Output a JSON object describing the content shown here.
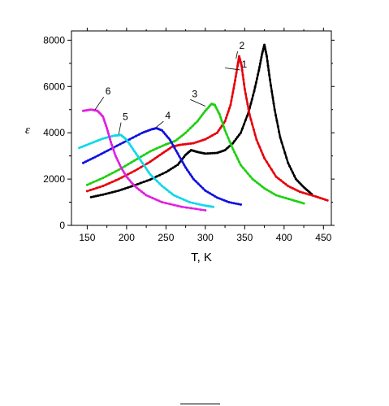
{
  "chart_data": {
    "type": "line",
    "xlabel": "T, K",
    "ylabel": "ε",
    "xlim": [
      130,
      460
    ],
    "ylim": [
      0,
      8400
    ],
    "x_ticks": [
      150,
      200,
      250,
      300,
      350,
      400,
      450
    ],
    "y_ticks": [
      0,
      2000,
      4000,
      6000,
      8000
    ],
    "grid": false,
    "legend": "none (curves numbered directly)",
    "series": [
      {
        "name": "1",
        "color": "#000000",
        "points": [
          [
            155,
            1220
          ],
          [
            170,
            1330
          ],
          [
            190,
            1500
          ],
          [
            210,
            1730
          ],
          [
            230,
            1980
          ],
          [
            250,
            2300
          ],
          [
            265,
            2620
          ],
          [
            275,
            3050
          ],
          [
            282,
            3250
          ],
          [
            290,
            3170
          ],
          [
            300,
            3100
          ],
          [
            315,
            3130
          ],
          [
            325,
            3250
          ],
          [
            335,
            3550
          ],
          [
            345,
            4000
          ],
          [
            355,
            4900
          ],
          [
            362,
            5800
          ],
          [
            368,
            6700
          ],
          [
            372,
            7400
          ],
          [
            375,
            7800
          ],
          [
            378,
            7300
          ],
          [
            382,
            6300
          ],
          [
            388,
            5000
          ],
          [
            395,
            3800
          ],
          [
            405,
            2700
          ],
          [
            415,
            2000
          ],
          [
            425,
            1650
          ],
          [
            435,
            1350
          ]
        ],
        "label_pos": [
          346,
          6820
        ],
        "label_anchor": [
          325,
          6800
        ]
      },
      {
        "name": "2",
        "color": "#e8000b",
        "points": [
          [
            150,
            1480
          ],
          [
            170,
            1700
          ],
          [
            190,
            2000
          ],
          [
            210,
            2350
          ],
          [
            230,
            2750
          ],
          [
            245,
            3100
          ],
          [
            258,
            3400
          ],
          [
            268,
            3480
          ],
          [
            285,
            3550
          ],
          [
            300,
            3720
          ],
          [
            315,
            4000
          ],
          [
            325,
            4500
          ],
          [
            332,
            5200
          ],
          [
            337,
            6100
          ],
          [
            341,
            6900
          ],
          [
            343,
            7300
          ],
          [
            346,
            6900
          ],
          [
            350,
            5900
          ],
          [
            356,
            4800
          ],
          [
            365,
            3700
          ],
          [
            375,
            2900
          ],
          [
            390,
            2100
          ],
          [
            405,
            1700
          ],
          [
            420,
            1450
          ],
          [
            440,
            1250
          ],
          [
            455,
            1080
          ]
        ],
        "label_pos": [
          343,
          7620
        ],
        "label_anchor": [
          339,
          7200
        ]
      },
      {
        "name": "3",
        "color": "#1ed010",
        "points": [
          [
            150,
            1750
          ],
          [
            170,
            2050
          ],
          [
            190,
            2400
          ],
          [
            210,
            2800
          ],
          [
            230,
            3200
          ],
          [
            250,
            3500
          ],
          [
            262,
            3650
          ],
          [
            275,
            4000
          ],
          [
            290,
            4500
          ],
          [
            300,
            4950
          ],
          [
            308,
            5250
          ],
          [
            312,
            5200
          ],
          [
            318,
            4800
          ],
          [
            325,
            4100
          ],
          [
            335,
            3300
          ],
          [
            345,
            2600
          ],
          [
            360,
            2000
          ],
          [
            375,
            1600
          ],
          [
            390,
            1300
          ],
          [
            410,
            1100
          ],
          [
            425,
            950
          ]
        ],
        "label_pos": [
          283,
          5540
        ],
        "label_anchor": [
          300,
          5150
        ]
      },
      {
        "name": "4",
        "color": "#1010e0",
        "points": [
          [
            145,
            2700
          ],
          [
            160,
            2950
          ],
          [
            180,
            3300
          ],
          [
            200,
            3650
          ],
          [
            220,
            4000
          ],
          [
            232,
            4150
          ],
          [
            238,
            4200
          ],
          [
            245,
            4100
          ],
          [
            255,
            3700
          ],
          [
            265,
            3100
          ],
          [
            275,
            2500
          ],
          [
            285,
            2000
          ],
          [
            300,
            1500
          ],
          [
            315,
            1200
          ],
          [
            330,
            1000
          ],
          [
            345,
            900
          ]
        ],
        "label_pos": [
          249,
          4600
        ],
        "label_anchor": [
          238,
          4250
        ]
      },
      {
        "name": "5",
        "color": "#10d8e8",
        "points": [
          [
            140,
            3350
          ],
          [
            155,
            3550
          ],
          [
            170,
            3750
          ],
          [
            185,
            3880
          ],
          [
            193,
            3900
          ],
          [
            200,
            3700
          ],
          [
            210,
            3200
          ],
          [
            220,
            2700
          ],
          [
            230,
            2200
          ],
          [
            245,
            1700
          ],
          [
            260,
            1300
          ],
          [
            280,
            1000
          ],
          [
            300,
            850
          ],
          [
            310,
            800
          ]
        ],
        "label_pos": [
          195,
          4550
        ],
        "label_anchor": [
          190,
          3930
        ]
      },
      {
        "name": "6",
        "color": "#e020e0",
        "points": [
          [
            145,
            4950
          ],
          [
            155,
            5000
          ],
          [
            163,
            4950
          ],
          [
            170,
            4700
          ],
          [
            175,
            4200
          ],
          [
            180,
            3600
          ],
          [
            186,
            3000
          ],
          [
            193,
            2500
          ],
          [
            200,
            2100
          ],
          [
            210,
            1700
          ],
          [
            225,
            1300
          ],
          [
            245,
            1000
          ],
          [
            270,
            800
          ],
          [
            300,
            650
          ]
        ],
        "label_pos": [
          173,
          5650
        ],
        "label_anchor": [
          160,
          5000
        ]
      }
    ]
  }
}
